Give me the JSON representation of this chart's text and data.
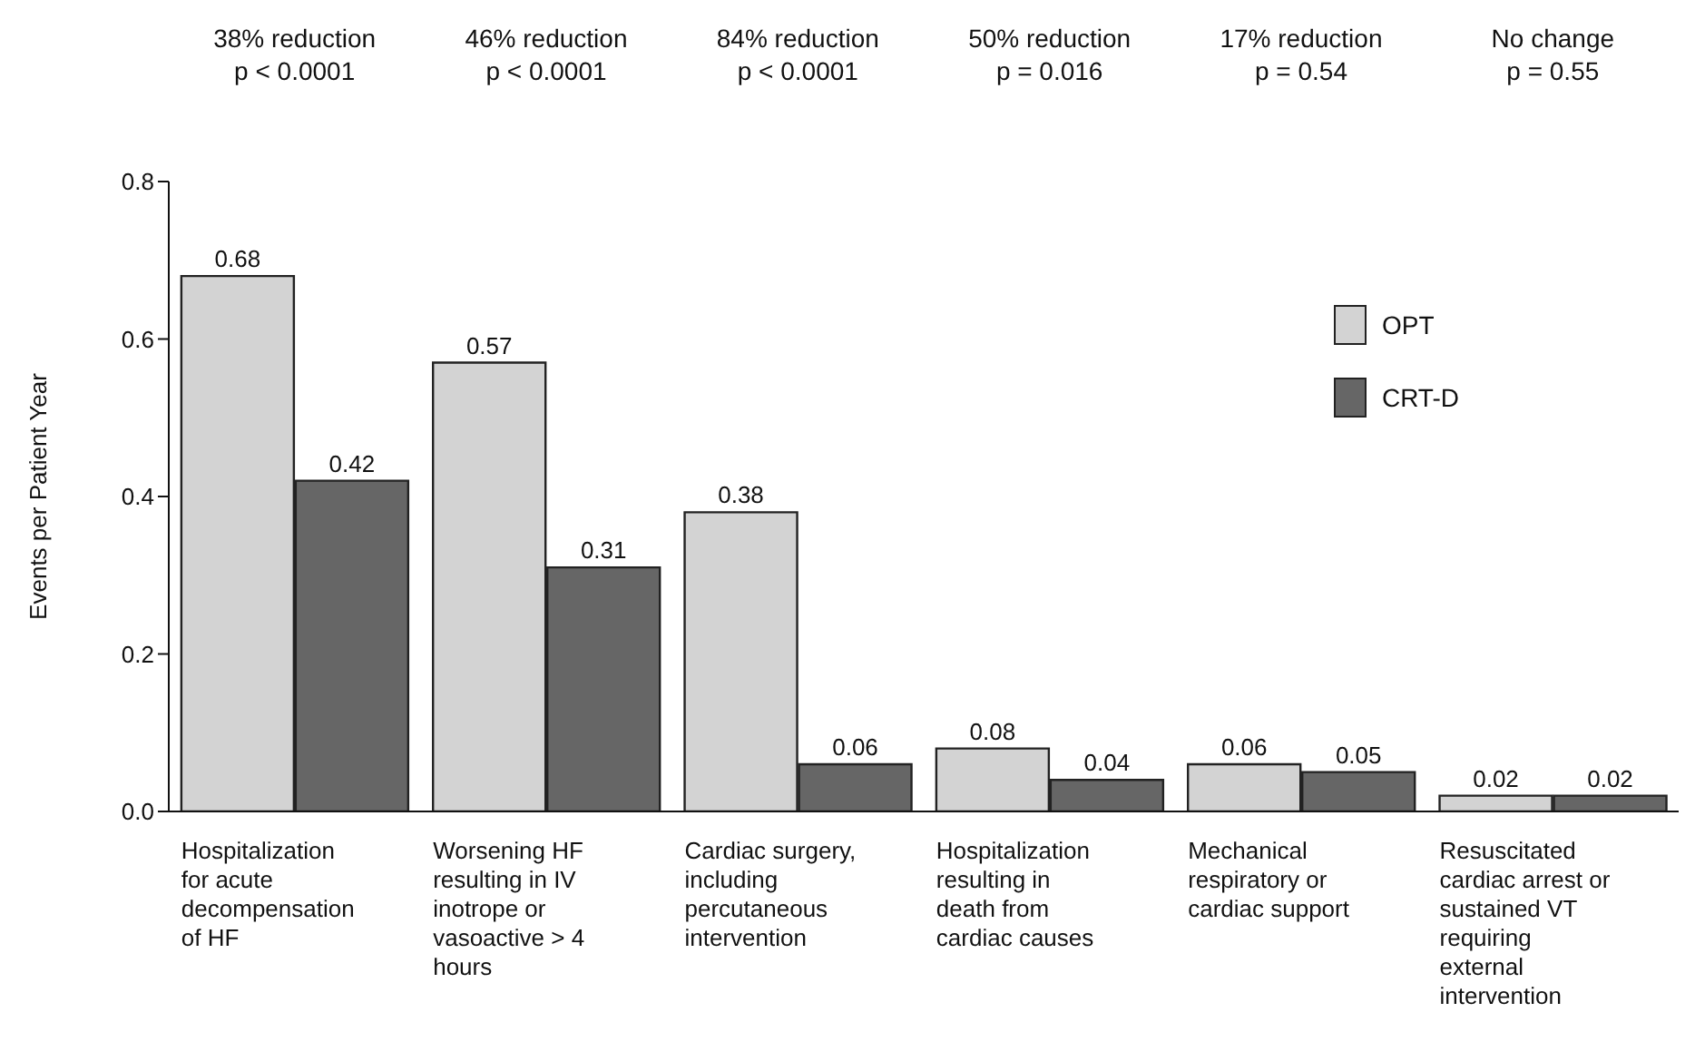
{
  "chart_data": {
    "type": "bar",
    "ylabel": "Events per Patient Year",
    "categories": [
      "Hospitalization for acute decompensation of HF",
      "Worsening HF resulting in IV inotrope or vasoactive > 4 hours",
      "Cardiac surgery, including percutaneous intervention",
      "Hospitalization resulting in death from cardiac causes",
      "Mechanical respiratory or cardiac support",
      "Resuscitated cardiac arrest or sustained VT requiring external intervention"
    ],
    "series": [
      {
        "name": "OPT",
        "color": "#d3d3d3",
        "values": [
          0.68,
          0.57,
          0.38,
          0.08,
          0.06,
          0.02
        ]
      },
      {
        "name": "CRT-D",
        "color": "#666666",
        "values": [
          0.42,
          0.31,
          0.06,
          0.04,
          0.05,
          0.02
        ]
      }
    ],
    "ylim": [
      0,
      0.8
    ],
    "yticks": [
      {
        "value": 0,
        "label": "0.0"
      },
      0.2,
      0.4,
      0.6,
      0.8
    ],
    "data_labels": true,
    "grid": false,
    "legend": "top right",
    "annotations": [
      "38% reduction\np < 0.0001",
      "46% reduction\np < 0.0001",
      "84% reduction\np < 0.0001",
      "50% reduction\np = 0.016",
      "17% reduction\np = 0.54",
      "No change\np = 0.55"
    ]
  }
}
